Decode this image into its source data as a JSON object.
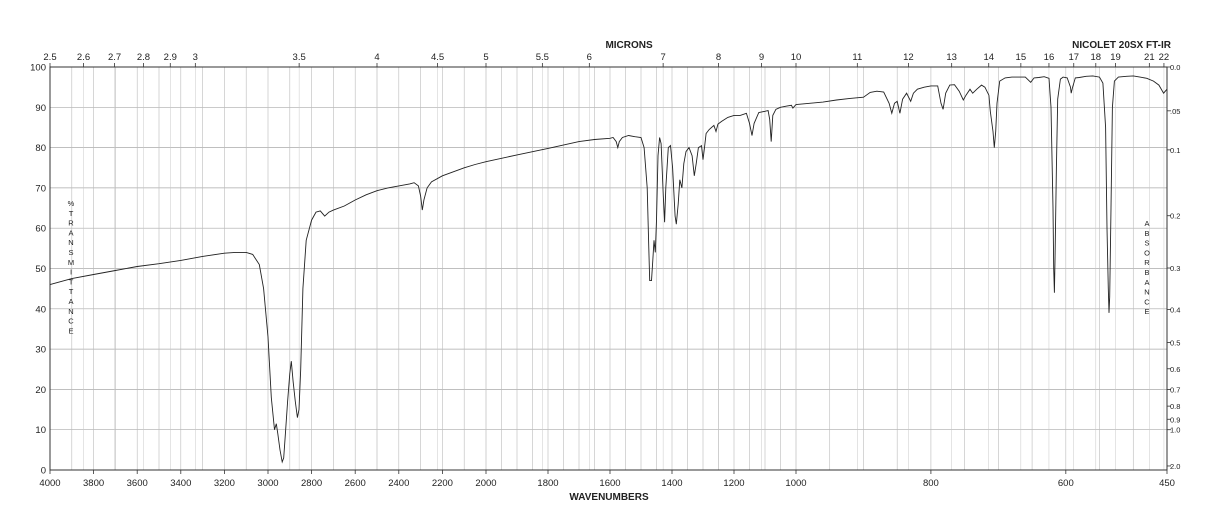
{
  "chart_data": {
    "type": "line",
    "title": "",
    "instrument": "NICOLET 20SX FT-IR",
    "top_axis_label": "MICRONS",
    "xlabel": "WAVENUMBERS",
    "left_axis_letters": [
      "%",
      "T",
      "R",
      "A",
      "N",
      "S",
      "M",
      "I",
      "T",
      "T",
      "A",
      "N",
      "C",
      "E"
    ],
    "right_axis_letters": [
      "A",
      "B",
      "S",
      "O",
      "R",
      "B",
      "A",
      "N",
      "C",
      "E"
    ],
    "x_segments": [
      {
        "from": 4000,
        "to": 2000,
        "ticks": [
          4000,
          3800,
          3600,
          3400,
          3200,
          3000,
          2800,
          2600,
          2400,
          2200,
          2000
        ]
      },
      {
        "from": 2000,
        "to": 1000,
        "ticks": [
          1800,
          1600,
          1400,
          1200,
          1000
        ]
      },
      {
        "from": 1000,
        "to": 450,
        "ticks": [
          800,
          600,
          450
        ]
      }
    ],
    "xlim": [
      4000,
      450
    ],
    "ylim": [
      0,
      100
    ],
    "y_ticks": [
      0,
      10,
      20,
      30,
      40,
      50,
      60,
      70,
      80,
      90,
      100
    ],
    "micron_ticks": [
      "2.5",
      "2.6",
      "2.7",
      "2.8",
      "2.9",
      "3",
      "3.5",
      "4",
      "4.5",
      "5",
      "5.5",
      "6",
      "7",
      "8",
      "9",
      "10",
      "11",
      "12",
      "13",
      "14",
      "15",
      "16",
      "17",
      "18",
      "19",
      "21",
      "22"
    ],
    "absorbance_ticks": [
      "0.0",
      ".05",
      "0.1",
      "0.2",
      "0.3",
      "0.4",
      "0.5",
      "0.6",
      "0.7",
      "0.8",
      "0.9",
      "1.0",
      "2.0"
    ],
    "series": [
      {
        "points": [
          [
            4000,
            46
          ],
          [
            3900,
            47.5
          ],
          [
            3800,
            48.5
          ],
          [
            3700,
            49.5
          ],
          [
            3600,
            50.5
          ],
          [
            3500,
            51.2
          ],
          [
            3400,
            52
          ],
          [
            3300,
            53
          ],
          [
            3200,
            53.8
          ],
          [
            3150,
            54
          ],
          [
            3100,
            54
          ],
          [
            3070,
            53.5
          ],
          [
            3040,
            51
          ],
          [
            3020,
            45
          ],
          [
            3000,
            33
          ],
          [
            2985,
            18
          ],
          [
            2970,
            10
          ],
          [
            2962,
            11.5
          ],
          [
            2955,
            9
          ],
          [
            2945,
            5
          ],
          [
            2935,
            2
          ],
          [
            2928,
            3
          ],
          [
            2920,
            9
          ],
          [
            2910,
            17
          ],
          [
            2900,
            24
          ],
          [
            2893,
            27
          ],
          [
            2885,
            22
          ],
          [
            2875,
            17
          ],
          [
            2865,
            13
          ],
          [
            2858,
            15
          ],
          [
            2850,
            25
          ],
          [
            2840,
            45
          ],
          [
            2825,
            57
          ],
          [
            2800,
            62
          ],
          [
            2780,
            64
          ],
          [
            2760,
            64.3
          ],
          [
            2740,
            63
          ],
          [
            2720,
            64
          ],
          [
            2700,
            64.5
          ],
          [
            2650,
            65.5
          ],
          [
            2600,
            67
          ],
          [
            2550,
            68.3
          ],
          [
            2500,
            69.3
          ],
          [
            2450,
            70
          ],
          [
            2400,
            70.5
          ],
          [
            2350,
            71
          ],
          [
            2330,
            71.3
          ],
          [
            2310,
            70.5
          ],
          [
            2300,
            68
          ],
          [
            2292,
            64.5
          ],
          [
            2285,
            67
          ],
          [
            2270,
            70
          ],
          [
            2250,
            71.5
          ],
          [
            2200,
            73
          ],
          [
            2150,
            74
          ],
          [
            2100,
            75
          ],
          [
            2050,
            75.8
          ],
          [
            2000,
            76.5
          ],
          [
            1900,
            78.2
          ],
          [
            1800,
            79.8
          ],
          [
            1700,
            81.5
          ],
          [
            1650,
            82
          ],
          [
            1600,
            82.3
          ],
          [
            1590,
            82.5
          ],
          [
            1580,
            81.5
          ],
          [
            1575,
            80
          ],
          [
            1570,
            81.5
          ],
          [
            1560,
            82.5
          ],
          [
            1540,
            83
          ],
          [
            1520,
            82.7
          ],
          [
            1500,
            82.5
          ],
          [
            1490,
            80
          ],
          [
            1480,
            70
          ],
          [
            1475,
            55
          ],
          [
            1472,
            47
          ],
          [
            1466,
            47
          ],
          [
            1462,
            52
          ],
          [
            1458,
            57
          ],
          [
            1454,
            54
          ],
          [
            1450,
            62
          ],
          [
            1445,
            78
          ],
          [
            1440,
            82.5
          ],
          [
            1435,
            81
          ],
          [
            1428,
            68
          ],
          [
            1424,
            61.5
          ],
          [
            1420,
            70
          ],
          [
            1412,
            80
          ],
          [
            1405,
            80.5
          ],
          [
            1398,
            75
          ],
          [
            1390,
            63
          ],
          [
            1386,
            61
          ],
          [
            1380,
            66
          ],
          [
            1375,
            72
          ],
          [
            1368,
            70
          ],
          [
            1362,
            76
          ],
          [
            1355,
            79
          ],
          [
            1345,
            80
          ],
          [
            1335,
            78
          ],
          [
            1328,
            73
          ],
          [
            1322,
            76
          ],
          [
            1315,
            80
          ],
          [
            1305,
            80.5
          ],
          [
            1300,
            77
          ],
          [
            1295,
            80
          ],
          [
            1290,
            83.5
          ],
          [
            1280,
            84.5
          ],
          [
            1265,
            85.5
          ],
          [
            1258,
            84
          ],
          [
            1252,
            85.8
          ],
          [
            1240,
            86.5
          ],
          [
            1220,
            87.5
          ],
          [
            1200,
            88
          ],
          [
            1180,
            88
          ],
          [
            1160,
            88.5
          ],
          [
            1150,
            86
          ],
          [
            1142,
            83
          ],
          [
            1135,
            86
          ],
          [
            1120,
            88.7
          ],
          [
            1100,
            89
          ],
          [
            1090,
            89.2
          ],
          [
            1085,
            87
          ],
          [
            1080,
            81.5
          ],
          [
            1075,
            88
          ],
          [
            1065,
            89.5
          ],
          [
            1050,
            90
          ],
          [
            1030,
            90.3
          ],
          [
            1015,
            90.5
          ],
          [
            1010,
            89.8
          ],
          [
            1000,
            90.7
          ],
          [
            980,
            91
          ],
          [
            960,
            91.3
          ],
          [
            940,
            91.8
          ],
          [
            920,
            92.2
          ],
          [
            900,
            92.5
          ],
          [
            890,
            93.7
          ],
          [
            880,
            94
          ],
          [
            870,
            93.8
          ],
          [
            862,
            91
          ],
          [
            858,
            88.5
          ],
          [
            854,
            91
          ],
          [
            850,
            91.5
          ],
          [
            846,
            88.5
          ],
          [
            842,
            92
          ],
          [
            836,
            93.5
          ],
          [
            830,
            91.5
          ],
          [
            826,
            93.5
          ],
          [
            820,
            94.5
          ],
          [
            810,
            95
          ],
          [
            800,
            95.3
          ],
          [
            790,
            95.3
          ],
          [
            785,
            91
          ],
          [
            782,
            89.5
          ],
          [
            778,
            93.5
          ],
          [
            772,
            95.5
          ],
          [
            765,
            95.6
          ],
          [
            758,
            94
          ],
          [
            752,
            91.8
          ],
          [
            748,
            93
          ],
          [
            742,
            94.5
          ],
          [
            738,
            93.5
          ],
          [
            732,
            94.5
          ],
          [
            725,
            95.5
          ],
          [
            720,
            95
          ],
          [
            714,
            93
          ],
          [
            712,
            89
          ],
          [
            708,
            84
          ],
          [
            706,
            80
          ],
          [
            704,
            84
          ],
          [
            702,
            91
          ],
          [
            698,
            96.5
          ],
          [
            690,
            97.3
          ],
          [
            680,
            97.5
          ],
          [
            660,
            97.5
          ],
          [
            652,
            96.2
          ],
          [
            647,
            97.3
          ],
          [
            640,
            97.4
          ],
          [
            632,
            97.6
          ],
          [
            625,
            97.2
          ],
          [
            622,
            90
          ],
          [
            619,
            65
          ],
          [
            618,
            50
          ],
          [
            617,
            44
          ],
          [
            616,
            52
          ],
          [
            614,
            75
          ],
          [
            612,
            92
          ],
          [
            608,
            97
          ],
          [
            604,
            97.5
          ],
          [
            598,
            97.3
          ],
          [
            593,
            95
          ],
          [
            592,
            93.5
          ],
          [
            590,
            95
          ],
          [
            586,
            97.3
          ],
          [
            580,
            97.4
          ],
          [
            570,
            97.7
          ],
          [
            560,
            97.8
          ],
          [
            550,
            97.5
          ],
          [
            545,
            96
          ],
          [
            541,
            85
          ],
          [
            539,
            60
          ],
          [
            537,
            45
          ],
          [
            536,
            39
          ],
          [
            535,
            43
          ],
          [
            533,
            65
          ],
          [
            531,
            90
          ],
          [
            528,
            96.5
          ],
          [
            522,
            97.5
          ],
          [
            510,
            97.7
          ],
          [
            500,
            97.8
          ],
          [
            490,
            97.5
          ],
          [
            480,
            97.2
          ],
          [
            470,
            96.5
          ],
          [
            462,
            95.5
          ],
          [
            455,
            93.5
          ],
          [
            450,
            94.5
          ]
        ]
      }
    ]
  }
}
